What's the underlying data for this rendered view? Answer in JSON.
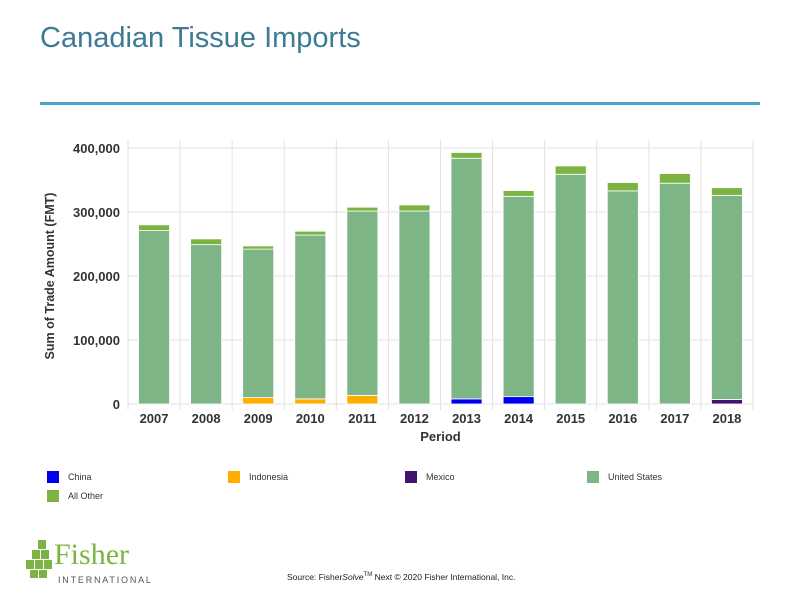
{
  "title": "Canadian Tissue Imports",
  "source": {
    "prefix": "Source: Fisher",
    "italic": "Solve",
    "tm": "TM",
    "suffix": " Next © 2020 Fisher International, Inc."
  },
  "logo": {
    "name": "Fisher",
    "sub": "INTERNATIONAL"
  },
  "chart_data": {
    "type": "bar",
    "stacked": true,
    "xlabel": "Period",
    "ylabel": "Sum of Trade Amount (FMT)",
    "ylim": [
      0,
      400000
    ],
    "yticks": [
      0,
      100000,
      200000,
      300000,
      400000
    ],
    "ytick_labels": [
      "0",
      "100,000",
      "200,000",
      "300,000",
      "400,000"
    ],
    "grid": true,
    "legend_position": "bottom",
    "categories": [
      "2007",
      "2008",
      "2009",
      "2010",
      "2011",
      "2012",
      "2013",
      "2014",
      "2015",
      "2016",
      "2017",
      "2018"
    ],
    "series": [
      {
        "name": "China",
        "color": "#0000ee",
        "values": [
          0,
          0,
          0,
          0,
          0,
          0,
          8000,
          11500,
          0,
          0,
          0,
          0
        ]
      },
      {
        "name": "Indonesia",
        "color": "#ffae00",
        "values": [
          0,
          0,
          10000,
          8000,
          13500,
          0,
          0,
          0,
          0,
          0,
          0,
          0
        ]
      },
      {
        "name": "Mexico",
        "color": "#43146b",
        "values": [
          0,
          0,
          0,
          0,
          0,
          0,
          0,
          0,
          0,
          0,
          0,
          7000
        ]
      },
      {
        "name": "United States",
        "color": "#7db587",
        "values": [
          271000,
          249000,
          232000,
          256000,
          288000,
          301500,
          376000,
          313000,
          359000,
          333000,
          345000,
          319000
        ]
      },
      {
        "name": "All Other",
        "color": "#7cb342",
        "values": [
          9000,
          9000,
          5000,
          6000,
          6000,
          9500,
          9000,
          9000,
          13000,
          13000,
          15000,
          12000
        ]
      }
    ]
  }
}
